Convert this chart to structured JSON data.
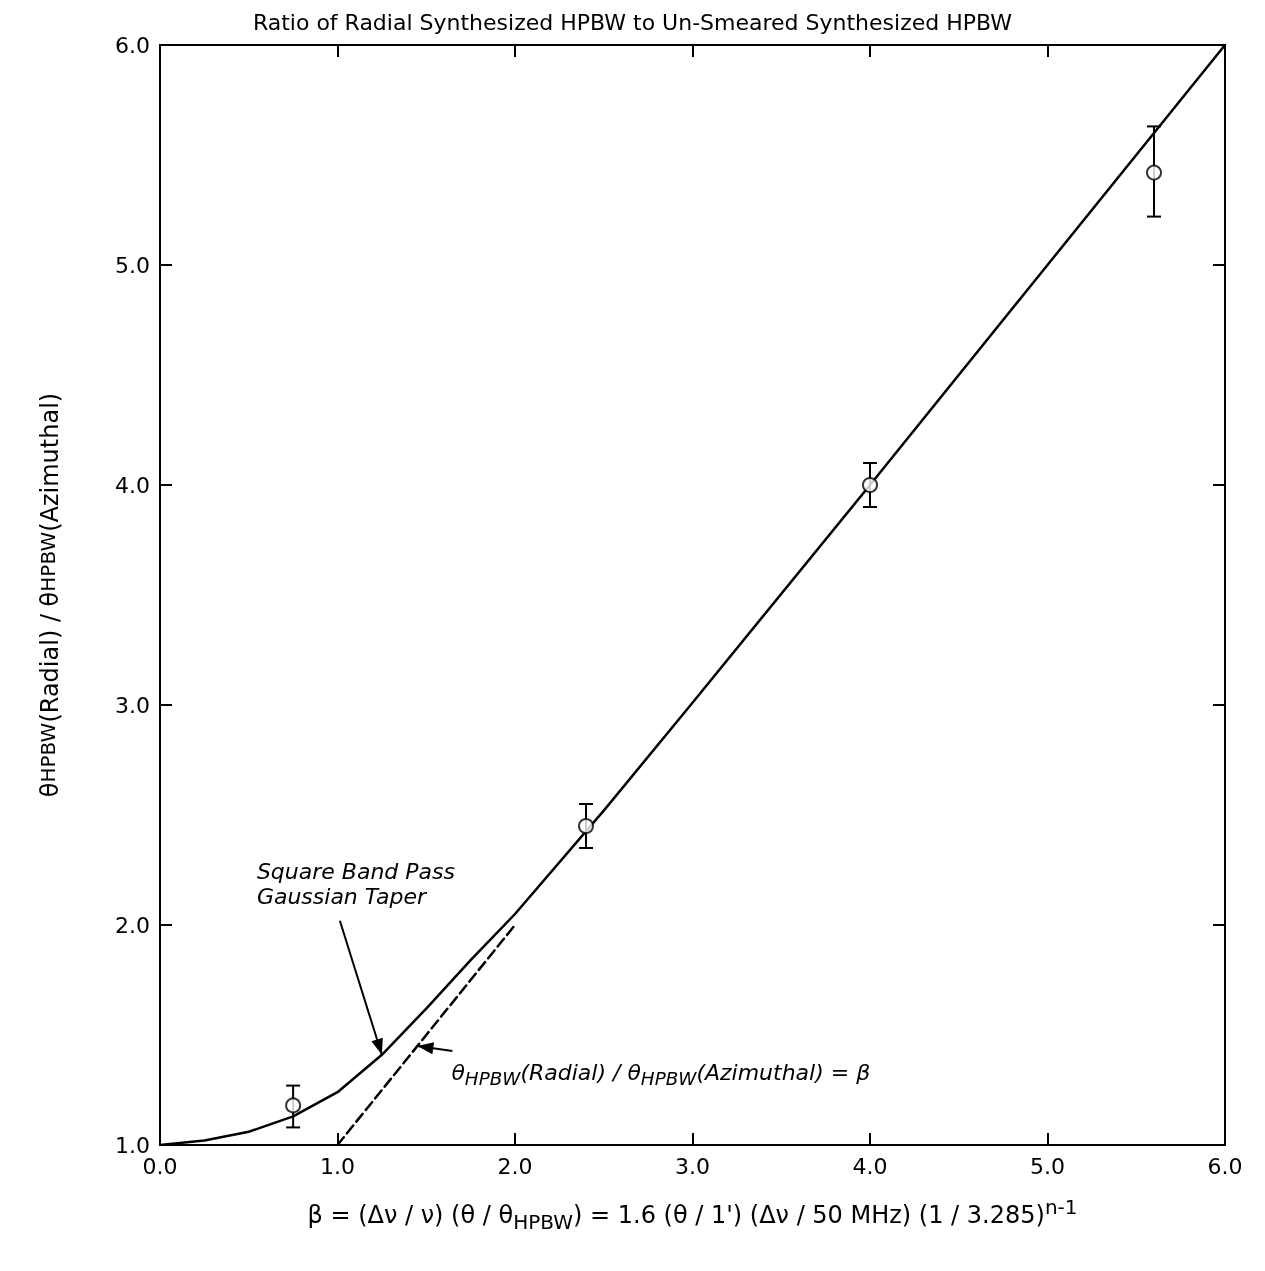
{
  "chart_data": {
    "type": "scatter",
    "title": "Ratio of Radial Synthesized HPBW to Un-Smeared Synthesized HPBW",
    "xlabel": "β = (Δν / ν) (θ / θ$_{HPBW}$) = 1.6 (θ / 1') (Δν / 50 MHz) (1 / 3.285)$^{n-1}$",
    "ylabel": "θ$_{HPBW}$(Radial) / θ$_{HPBW}$(Azimuthal)",
    "series": [
      {
        "color": "#000000",
        "marker": "circle",
        "x": [
          0.75,
          2.4,
          4.0,
          5.6
        ],
        "values": [
          1.18,
          2.45,
          4.0,
          5.42
        ],
        "errors": [
          [
            1.08,
            1.27
          ],
          [
            2.35,
            2.55
          ],
          [
            3.9,
            4.1
          ],
          [
            5.22,
            5.63
          ]
        ]
      },
      {
        "type": "line",
        "color": "#000000",
        "marker": "none",
        "line_style": "solid",
        "x": [
          0,
          0.25,
          0.5,
          0.75,
          1.0,
          1.25,
          1.5,
          1.75,
          2.0,
          2.5,
          3.0,
          4.0,
          5.0,
          6.0
        ],
        "values": [
          1.0,
          1.02,
          1.06,
          1.13,
          1.24,
          1.41,
          1.62,
          1.84,
          2.05,
          2.52,
          3.01,
          4.0,
          5.0,
          6.0
        ]
      },
      {
        "type": "line",
        "color": "#000000",
        "marker": "none",
        "line_style": "dashed",
        "x": [
          1.0,
          2.0
        ],
        "values": [
          1.0,
          2.0
        ]
      }
    ],
    "annotations": [
      {
        "text": "Square Band Pass\nGaussian Taper",
        "x": 1.25,
        "y": 1.41
      },
      {
        "text": "θ$_{HPBW}$(Radial) / θ$_{HPBW}$(Azimuthal) = β",
        "x": 1.45,
        "y": 1.45
      }
    ],
    "xlim": [
      0,
      6
    ],
    "ylim": [
      1,
      6
    ],
    "xticks": [
      {
        "value": 0,
        "label": "0.0"
      },
      {
        "value": 1,
        "label": "1.0"
      },
      {
        "value": 2,
        "label": "2.0"
      },
      {
        "value": 3,
        "label": "3.0"
      },
      {
        "value": 4,
        "label": "4.0"
      },
      {
        "value": 5,
        "label": "5.0"
      },
      {
        "value": 6,
        "label": "6.0"
      }
    ],
    "yticks": [
      {
        "value": 1,
        "label": "1.0"
      },
      {
        "value": 2,
        "label": "2.0"
      },
      {
        "value": 3,
        "label": "3.0"
      },
      {
        "value": 4,
        "label": "4.0"
      },
      {
        "value": 5,
        "label": "5.0"
      },
      {
        "value": 6,
        "label": "6.0"
      }
    ],
    "grid": false
  }
}
